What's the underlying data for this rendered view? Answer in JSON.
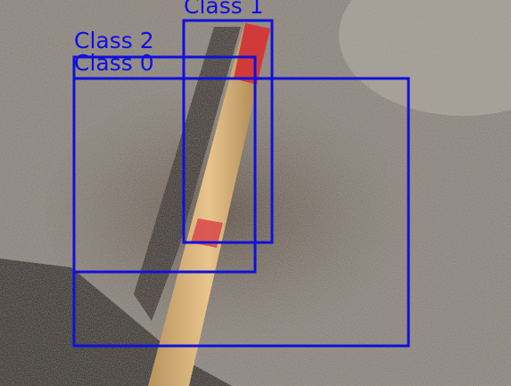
{
  "detections": [
    {
      "label": "Class 1"
    },
    {
      "label": "Class 2"
    },
    {
      "label": "Class 0"
    }
  ]
}
